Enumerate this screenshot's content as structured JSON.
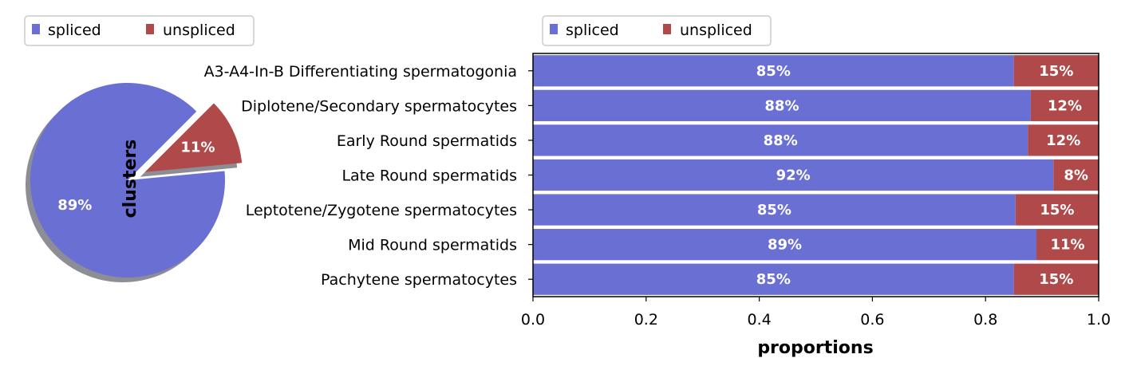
{
  "colors": {
    "spliced": "#6a6fd3",
    "unspliced": "#b04a4a",
    "shadow": "#8d8d96",
    "frame": "#cccccc"
  },
  "chart_data": [
    {
      "type": "pie",
      "ylabel": "clusters",
      "legend": {
        "position": "top-left",
        "entries": [
          "spliced",
          "unspliced"
        ]
      },
      "slices": [
        {
          "label": "spliced",
          "value": 89,
          "text": "89%"
        },
        {
          "label": "unspliced",
          "value": 11,
          "text": "11%"
        }
      ],
      "explode": "unspliced",
      "shadow": true
    },
    {
      "type": "bar",
      "orientation": "horizontal",
      "stacked": true,
      "xlabel": "proportions",
      "xlim": [
        0,
        1
      ],
      "xticks": [
        "0.0",
        "0.2",
        "0.4",
        "0.6",
        "0.8",
        "1.0"
      ],
      "legend": {
        "position": "top-left",
        "entries": [
          "spliced",
          "unspliced"
        ]
      },
      "categories": [
        "A3-A4-In-B Differentiating spermatogonia",
        "Diplotene/Secondary spermatocytes",
        "Early Round spermatids",
        "Late Round spermatids",
        "Leptotene/Zygotene spermatocytes",
        "Mid Round spermatids",
        "Pachytene spermatocytes"
      ],
      "series": [
        {
          "name": "spliced",
          "values": [
            0.85,
            0.88,
            0.875,
            0.92,
            0.853,
            0.89,
            0.85
          ],
          "labels": [
            "85%",
            "88%",
            "88%",
            "92%",
            "85%",
            "89%",
            "85%"
          ]
        },
        {
          "name": "unspliced",
          "values": [
            0.15,
            0.12,
            0.125,
            0.08,
            0.147,
            0.11,
            0.15
          ],
          "labels": [
            "15%",
            "12%",
            "12%",
            "8%",
            "15%",
            "11%",
            "15%"
          ]
        }
      ]
    }
  ]
}
